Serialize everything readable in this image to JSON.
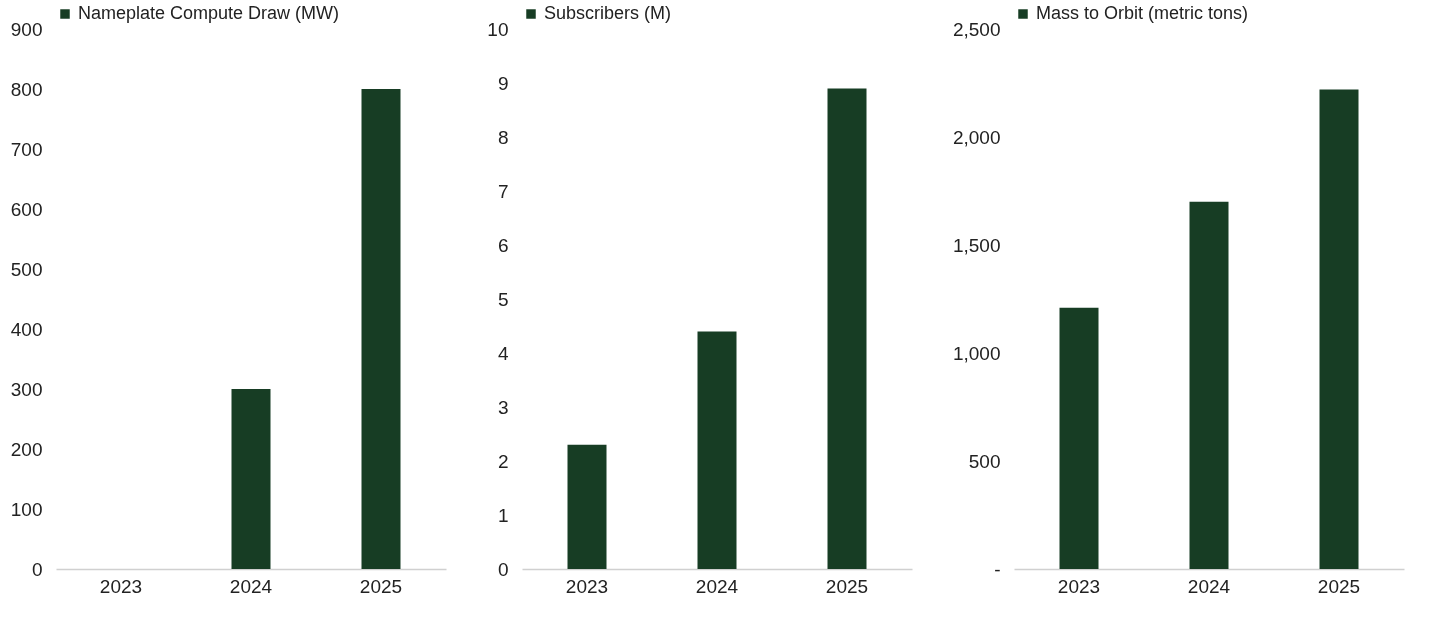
{
  "chart_data": [
    {
      "type": "bar",
      "categories": [
        "2023",
        "2024",
        "2025"
      ],
      "series": [
        {
          "name": "Nameplate Compute Draw (MW)",
          "color": "#173d24",
          "values": [
            0,
            300,
            800
          ]
        }
      ],
      "ylim": [
        0,
        900
      ],
      "yticks": [
        0,
        100,
        200,
        300,
        400,
        500,
        600,
        700,
        800,
        900
      ],
      "legend": "top left"
    },
    {
      "type": "bar",
      "categories": [
        "2023",
        "2024",
        "2025"
      ],
      "series": [
        {
          "name": "Subscribers (M)",
          "color": "#173d24",
          "values": [
            2.3,
            4.4,
            8.9
          ]
        }
      ],
      "ylim": [
        0,
        10
      ],
      "yticks": [
        0,
        1,
        2,
        3,
        4,
        5,
        6,
        7,
        8,
        9,
        10
      ],
      "legend": "top left"
    },
    {
      "type": "bar",
      "categories": [
        "2023",
        "2024",
        "2025"
      ],
      "series": [
        {
          "name": "Mass to Orbit (metric tons)",
          "color": "#173d24",
          "values": [
            1210,
            1700,
            2220
          ]
        }
      ],
      "ylim": [
        0,
        2500
      ],
      "yticks": [
        {
          "value": 0,
          "label": "-"
        },
        500,
        {
          "value": 1000,
          "label": "1,000"
        },
        {
          "value": 1500,
          "label": "1,500"
        },
        {
          "value": 2000,
          "label": "2,000"
        },
        {
          "value": 2500,
          "label": "2,500"
        }
      ],
      "legend": "top left"
    }
  ]
}
